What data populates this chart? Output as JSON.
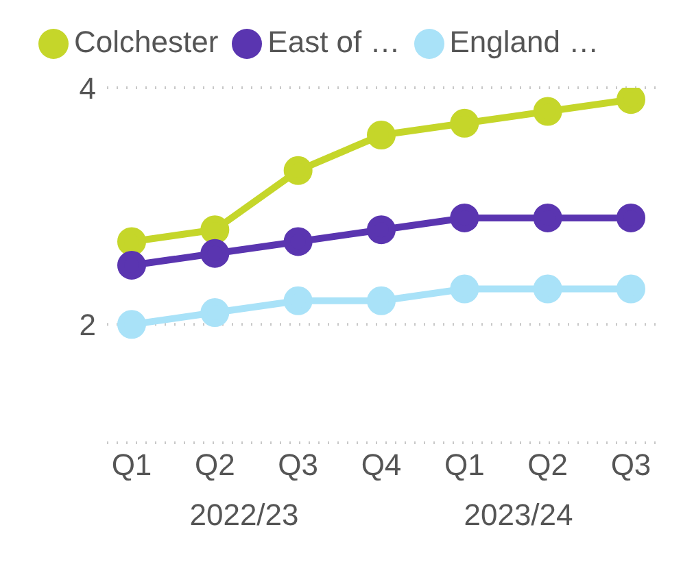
{
  "chart_data": {
    "type": "line",
    "categories": [
      "Q1",
      "Q2",
      "Q3",
      "Q4",
      "Q1",
      "Q2",
      "Q3"
    ],
    "series": [
      {
        "name": "Colchester",
        "color": "#c5d62a",
        "values": [
          2.7,
          2.8,
          3.3,
          3.6,
          3.7,
          3.8,
          3.9
        ]
      },
      {
        "name": "East of …",
        "color": "#5a35b0",
        "values": [
          2.5,
          2.6,
          2.7,
          2.8,
          2.9,
          2.9,
          2.9
        ]
      },
      {
        "name": "England …",
        "color": "#a9e2f8",
        "values": [
          2.0,
          2.1,
          2.2,
          2.2,
          2.3,
          2.3,
          2.3
        ]
      }
    ],
    "ylim": [
      1,
      4
    ],
    "yticks": [
      2,
      4
    ],
    "grid": "y",
    "legend": "top left",
    "marker": "circle",
    "line_style": "solid",
    "annotations": [
      "2022/23",
      "2023/24"
    ]
  }
}
